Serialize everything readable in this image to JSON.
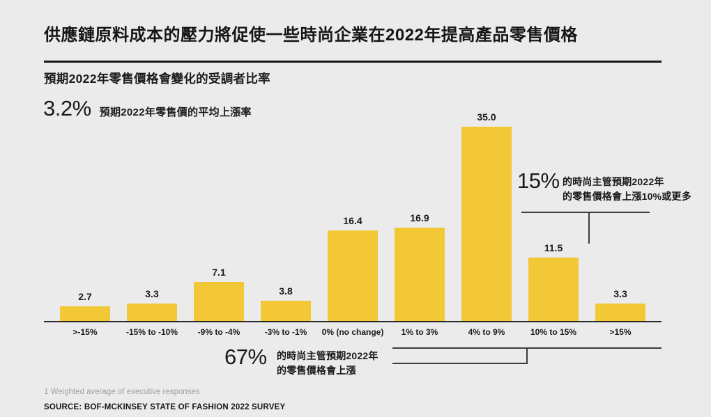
{
  "page": {
    "title": "供應鏈原料成本的壓力將促使一些時尚企業在2022年提高產品零售價格",
    "subtitle": "預期2022年零售價格會變化的受調者比率",
    "stat": {
      "value": "3.2%",
      "label": "預期2022年零售價的平均上漲率"
    },
    "footnote": "1 Weighted average of executive responses",
    "source": "SOURCE: BOF-MCKINSEY STATE OF FASHION 2022 SURVEY"
  },
  "chart_data": {
    "type": "bar",
    "title": "預期2022年零售價格會變化的受調者比率",
    "categories": [
      ">-15%",
      "-15% to -10%",
      "-9% to -4%",
      "-3% to -1%",
      "0% (no change)",
      "1% to 3%",
      "4% to 9%",
      "10% to 15%",
      ">15%"
    ],
    "values": [
      2.7,
      3.3,
      7.1,
      3.8,
      16.4,
      16.9,
      35.0,
      11.5,
      3.3
    ],
    "value_labels": [
      "2.7",
      "3.3",
      "7.1",
      "3.8",
      "16.4",
      "16.9",
      "35.0",
      "11.5",
      "3.3"
    ],
    "xlabel": "",
    "ylabel": "",
    "ylim": [
      0,
      35
    ],
    "grid": false,
    "legend": "none",
    "bar_color": "#F2C836",
    "annotations": [
      {
        "value": "15%",
        "text_line1": "的時尚主管預期2022年",
        "text_line2": "的零售價格會上漲10%或更多",
        "spans_categories": [
          "10% to 15%",
          ">15%"
        ]
      },
      {
        "value": "67%",
        "text_line1": "的時尚主管預期2022年",
        "text_line2": "的零售價格會上漲",
        "spans_categories": [
          "1% to 3%",
          "4% to 9%",
          "10% to 15%",
          ">15%"
        ]
      }
    ]
  },
  "colors": {
    "background": "#EBEBEB",
    "bar": "#F2C836",
    "text": "#1C1C1C",
    "axis": "#2A2A2A",
    "bracket": "#3C3C3C",
    "footnote_gray": "#A3A09D"
  }
}
